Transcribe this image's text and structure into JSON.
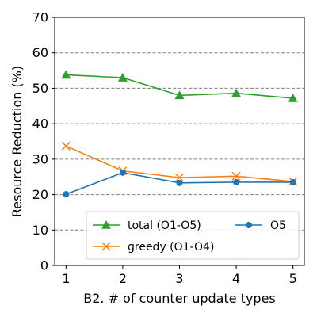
{
  "chart_data": {
    "type": "line",
    "xlabel": "B2. # of counter update types",
    "ylabel": "Resource Reduction (%)",
    "x": [
      1,
      2,
      3,
      4,
      5
    ],
    "xlim": [
      0.8,
      5.2
    ],
    "ylim": [
      0,
      70
    ],
    "xticks": [
      "1",
      "2",
      "3",
      "4",
      "5"
    ],
    "yticks": [
      "0",
      "10",
      "20",
      "30",
      "40",
      "50",
      "60",
      "70"
    ],
    "grid": "horizontal-dashed",
    "legend_position": "lower-right",
    "series": [
      {
        "name": "total (O1-O5)",
        "color": "#2ca02c",
        "marker": "triangle",
        "values": [
          53.8,
          53.0,
          48.0,
          48.6,
          47.2
        ]
      },
      {
        "name": "greedy (O1-O4)",
        "color": "#ff7f0e",
        "marker": "x",
        "values": [
          33.7,
          26.7,
          24.8,
          25.2,
          23.7
        ]
      },
      {
        "name": "O5",
        "color": "#1f77b4",
        "marker": "circle",
        "values": [
          20.1,
          26.2,
          23.3,
          23.5,
          23.5
        ]
      }
    ]
  }
}
